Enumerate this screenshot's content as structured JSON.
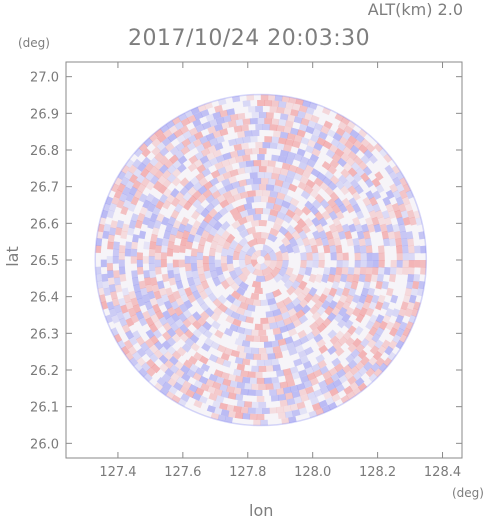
{
  "header": {
    "timestamp": "2017/10/24 20:03:30",
    "altitude": "ALT(km)  2.0"
  },
  "colors": {
    "frame": "#8a8a8a",
    "tick_text": "#7a7a7a",
    "positive": "#f08080",
    "negative": "#8a8cf0"
  },
  "chart_data": {
    "type": "heatmap",
    "title": "2017/10/24 20:03:30",
    "subtitle": "ALT(km)  2.0",
    "xlabel": "lon",
    "ylabel": "lat",
    "x_unit": "(deg)",
    "y_unit": "(deg)",
    "xlim": [
      127.24,
      128.46
    ],
    "ylim": [
      25.96,
      27.04
    ],
    "x_ticks": [
      127.4,
      127.6,
      127.8,
      128.0,
      128.2,
      128.4
    ],
    "x_tick_labels": [
      "127.4",
      "127.6",
      "127.8",
      "128.0",
      "128.2",
      "128.4"
    ],
    "y_ticks": [
      26.0,
      26.1,
      26.2,
      26.3,
      26.4,
      26.5,
      26.6,
      26.7,
      26.8,
      26.9,
      27.0
    ],
    "y_tick_labels": [
      "26.0",
      "26.1",
      "26.2",
      "26.3",
      "26.4",
      "26.5",
      "26.6",
      "26.7",
      "26.8",
      "26.9",
      "27.0"
    ],
    "radar_center": [
      127.84,
      26.5
    ],
    "radar_radius_deg": 0.51,
    "colormap": "diverging red-white-blue",
    "grid": false
  }
}
